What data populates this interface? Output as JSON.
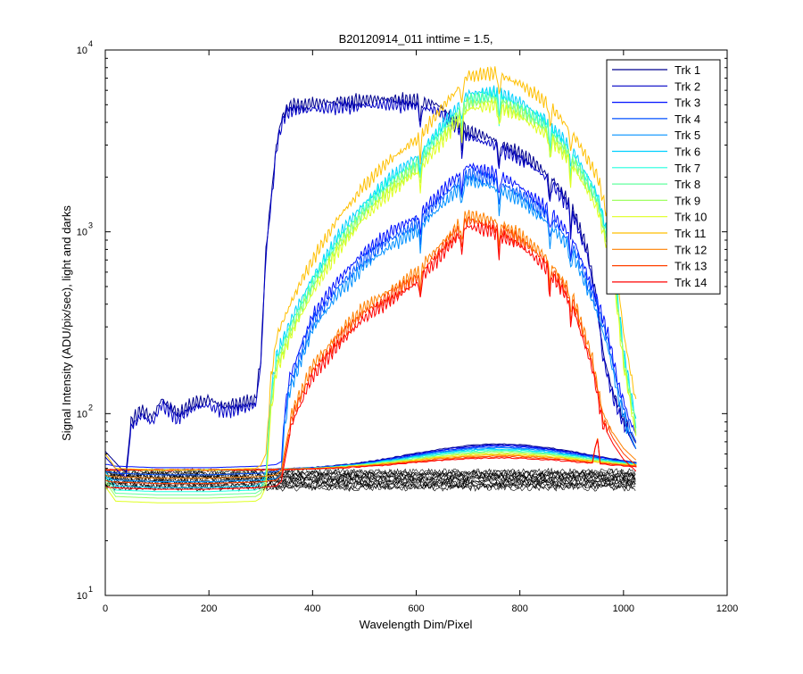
{
  "chart_data": {
    "type": "line",
    "title": "B20120914_011 inttime = 1.5,",
    "xlabel": "Wavelength Dim/Pixel",
    "ylabel": "Signal Intensity (ADU/pix/sec), light and darks",
    "xlim": [
      0,
      1200
    ],
    "ylim": [
      10,
      10000
    ],
    "y_scale": "log",
    "grid": false,
    "legend_position": "top-right",
    "x_ticks": [
      "0",
      "200",
      "400",
      "600",
      "800",
      "1000",
      "1200"
    ],
    "y_ticks": [
      {
        "base": "10",
        "exp": "1"
      },
      {
        "base": "10",
        "exp": "2"
      },
      {
        "base": "10",
        "exp": "3"
      },
      {
        "base": "10",
        "exp": "4"
      }
    ],
    "series": [
      {
        "name": "Trk 1",
        "color": "#00008f",
        "profile": "blue",
        "scale": 1.0
      },
      {
        "name": "Trk 2",
        "color": "#0000c4",
        "profile": "blue",
        "scale": 0.93
      },
      {
        "name": "Trk 3",
        "color": "#0010ff",
        "profile": "mid",
        "scale": 1.05
      },
      {
        "name": "Trk 4",
        "color": "#0050ff",
        "profile": "mid",
        "scale": 0.96
      },
      {
        "name": "Trk 5",
        "color": "#0090ff",
        "profile": "mid",
        "scale": 0.88
      },
      {
        "name": "Trk 6",
        "color": "#00d0ff",
        "profile": "high",
        "scale": 0.8
      },
      {
        "name": "Trk 7",
        "color": "#20ffdf",
        "profile": "high",
        "scale": 0.76
      },
      {
        "name": "Trk 8",
        "color": "#60ff9f",
        "profile": "high",
        "scale": 0.73
      },
      {
        "name": "Trk 9",
        "color": "#9fff60",
        "profile": "high",
        "scale": 0.7
      },
      {
        "name": "Trk 10",
        "color": "#dfff20",
        "profile": "high",
        "scale": 0.66
      },
      {
        "name": "Trk 11",
        "color": "#ffbf00",
        "profile": "high",
        "scale": 1.0
      },
      {
        "name": "Trk 12",
        "color": "#ff8000",
        "profile": "low",
        "scale": 0.92
      },
      {
        "name": "Trk 13",
        "color": "#ff4000",
        "profile": "low",
        "scale": 0.86
      },
      {
        "name": "Trk 14",
        "color": "#ff0000",
        "profile": "low",
        "scale": 0.8
      }
    ],
    "profiles": {
      "blue": {
        "x": [
          0,
          30,
          40,
          50,
          70,
          90,
          110,
          140,
          170,
          200,
          230,
          260,
          290,
          300,
          310,
          330,
          340,
          350,
          360,
          380,
          400,
          450,
          500,
          550,
          600,
          640,
          660,
          680,
          700,
          740,
          780,
          820,
          860,
          900,
          930,
          950,
          960,
          980,
          1000,
          1020,
          1025
        ],
        "y": [
          62,
          50,
          48,
          90,
          105,
          95,
          120,
          100,
          115,
          120,
          110,
          115,
          120,
          200,
          800,
          3000,
          4200,
          4800,
          5000,
          5000,
          5100,
          5200,
          5300,
          5400,
          5300,
          5000,
          4500,
          4000,
          3600,
          3300,
          2900,
          2500,
          2000,
          1400,
          800,
          400,
          220,
          130,
          95,
          72,
          68
        ]
      },
      "mid": {
        "x": [
          0,
          5,
          20,
          100,
          200,
          300,
          330,
          340,
          345,
          355,
          400,
          450,
          500,
          550,
          600,
          650,
          700,
          750,
          800,
          850,
          900,
          950,
          970,
          990,
          1010,
          1025
        ],
        "y": [
          50,
          50,
          49,
          48,
          48,
          49,
          50,
          52,
          90,
          150,
          330,
          520,
          740,
          950,
          1150,
          1600,
          2200,
          2000,
          1700,
          1300,
          900,
          400,
          260,
          140,
          90,
          72
        ]
      },
      "high": {
        "x": [
          0,
          10,
          20,
          100,
          200,
          290,
          300,
          310,
          320,
          330,
          360,
          400,
          450,
          500,
          550,
          600,
          650,
          700,
          750,
          800,
          850,
          900,
          950,
          980,
          1000,
          1025
        ],
        "y": [
          60,
          55,
          50,
          49,
          49,
          50,
          52,
          60,
          160,
          260,
          420,
          700,
          1200,
          1800,
          2500,
          3200,
          4800,
          7200,
          7500,
          6500,
          5200,
          3600,
          2000,
          900,
          280,
          110
        ]
      },
      "low": {
        "x": [
          0,
          10,
          100,
          200,
          300,
          330,
          340,
          345,
          360,
          400,
          450,
          500,
          550,
          600,
          650,
          700,
          750,
          800,
          850,
          900,
          940,
          960,
          980,
          1000,
          1025
        ],
        "y": [
          50,
          49,
          48,
          48,
          49,
          50,
          53,
          65,
          110,
          200,
          300,
          420,
          520,
          650,
          950,
          1350,
          1250,
          1050,
          800,
          500,
          220,
          110,
          85,
          70,
          60
        ]
      }
    },
    "darks": {
      "color": "#000000",
      "level_min": 39,
      "level_max": 48,
      "x_range": [
        0,
        1025
      ],
      "count": 14
    },
    "dark_light_band": {
      "description_free": true,
      "base": 49,
      "bump_peak": 68,
      "bump_center": 760,
      "bump_width": 160
    }
  }
}
